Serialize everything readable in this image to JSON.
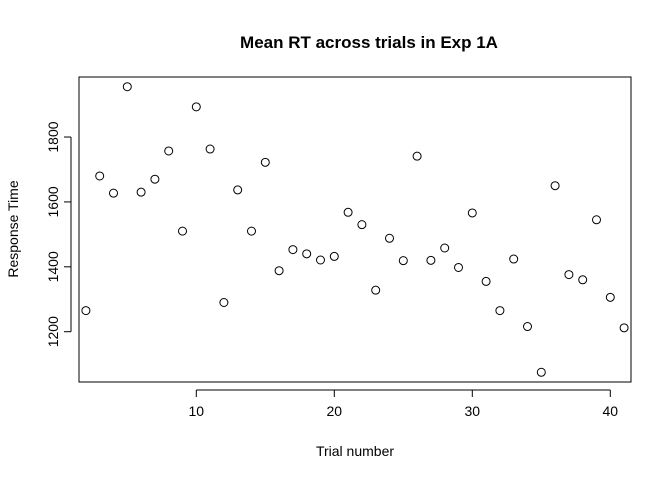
{
  "chart_data": {
    "type": "scatter",
    "title": "Mean RT across trials in Exp 1A",
    "xlabel": "Trial number",
    "ylabel": "Response Time",
    "xlim": [
      1.5,
      41.5
    ],
    "ylim": [
      1045,
      1985
    ],
    "xticks": [
      10,
      20,
      30,
      40
    ],
    "yticks": [
      1200,
      1400,
      1600,
      1800
    ],
    "grid": false,
    "marker": "open-circle",
    "x": [
      2,
      3,
      4,
      5,
      6,
      7,
      8,
      9,
      10,
      11,
      12,
      13,
      14,
      15,
      16,
      17,
      18,
      19,
      20,
      21,
      22,
      23,
      24,
      25,
      26,
      27,
      28,
      29,
      30,
      31,
      32,
      33,
      34,
      35,
      36,
      37,
      38,
      39,
      40,
      41
    ],
    "y": [
      1265,
      1680,
      1627,
      1955,
      1630,
      1670,
      1757,
      1510,
      1893,
      1763,
      1290,
      1637,
      1510,
      1722,
      1388,
      1453,
      1440,
      1421,
      1432,
      1568,
      1530,
      1328,
      1488,
      1419,
      1741,
      1420,
      1458,
      1398,
      1566,
      1355,
      1265,
      1424,
      1216,
      1075,
      1650,
      1376,
      1360,
      1545,
      1306,
      1212
    ]
  }
}
